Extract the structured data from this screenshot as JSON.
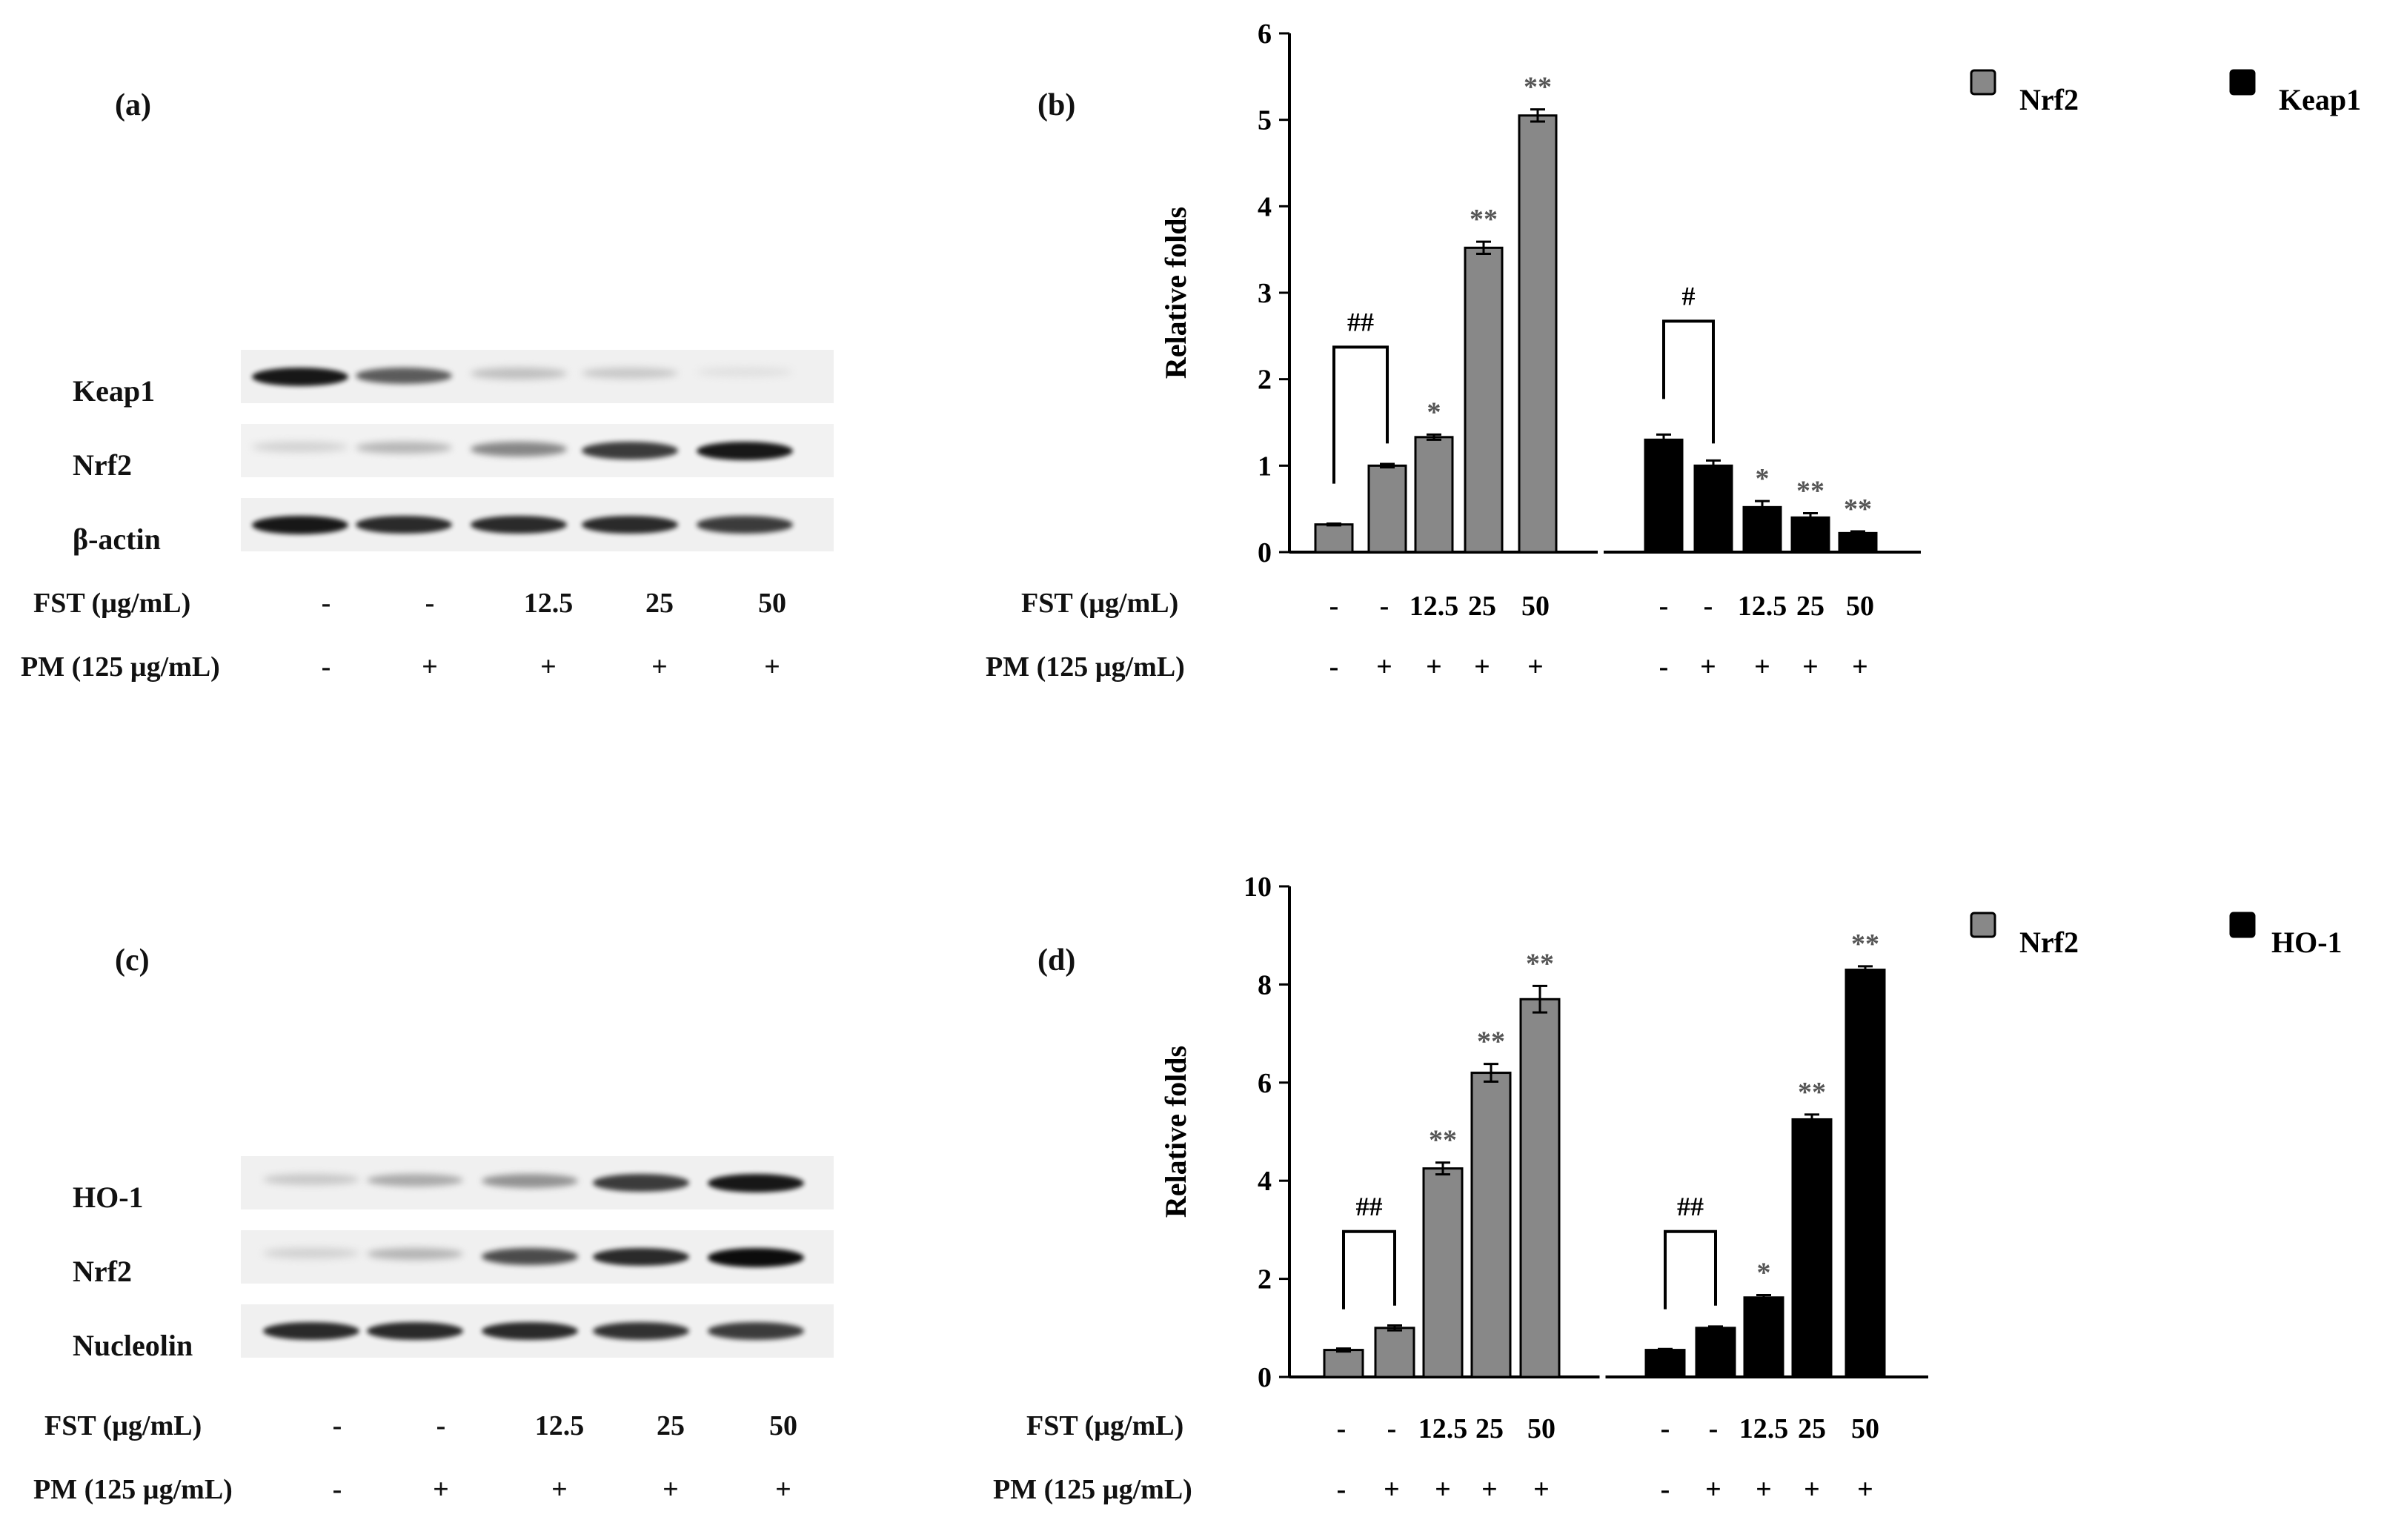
{
  "panels": {
    "a": {
      "label": "(a)",
      "blot_rows": [
        "Keap1",
        "Nrf2",
        "β-actin"
      ],
      "fst_label": "FST (µg/mL)",
      "pm_label": "PM (125 µg/mL)",
      "fst_values": [
        "-",
        "-",
        "12.5",
        "25",
        "50"
      ],
      "pm_values": [
        "-",
        "+",
        "+",
        "+",
        "+"
      ],
      "band_intensity": {
        "Keap1": [
          0.95,
          0.75,
          0.35,
          0.3,
          0.15
        ],
        "Nrf2": [
          0.25,
          0.4,
          0.6,
          0.85,
          0.95
        ],
        "β-actin": [
          0.95,
          0.9,
          0.9,
          0.9,
          0.85
        ]
      }
    },
    "c": {
      "label": "(c)",
      "blot_rows": [
        "HO-1",
        "Nrf2",
        "Nucleolin"
      ],
      "fst_label": "FST (µg/mL)",
      "pm_label": "PM (125 µg/mL)",
      "fst_values": [
        "-",
        "-",
        "12.5",
        "25",
        "50"
      ],
      "pm_values": [
        "-",
        "+",
        "+",
        "+",
        "+"
      ],
      "band_intensity": {
        "HO-1": [
          0.3,
          0.45,
          0.55,
          0.85,
          0.95
        ],
        "Nrf2": [
          0.25,
          0.4,
          0.8,
          0.9,
          0.98
        ],
        "Nucleolin": [
          0.9,
          0.9,
          0.9,
          0.88,
          0.85
        ]
      }
    },
    "b": {
      "label": "(b)",
      "fst_label": "FST (µg/mL)",
      "pm_label": "PM (125 µg/mL)"
    },
    "d": {
      "label": "(d)",
      "fst_label": "FST (µg/mL)",
      "pm_label": "PM (125 µg/mL)"
    }
  },
  "chart_data": [
    {
      "id": "b",
      "type": "bar",
      "ylabel": "Relative folds",
      "ylim": [
        0,
        6
      ],
      "yticks": [
        0,
        1,
        2,
        3,
        4,
        5,
        6
      ],
      "legend": [
        {
          "name": "Nrf2",
          "color": "#888888"
        },
        {
          "name": "Keap1",
          "color": "#000000"
        }
      ],
      "fst_values": [
        "-",
        "-",
        "12.5",
        "25",
        "50"
      ],
      "pm_values": [
        "-",
        "+",
        "+",
        "+",
        "+"
      ],
      "series": [
        {
          "name": "Nrf2",
          "color": "#888888",
          "values": [
            0.32,
            1.0,
            1.33,
            3.52,
            5.05
          ],
          "errors": [
            0.01,
            0.02,
            0.03,
            0.07,
            0.07
          ],
          "sig": [
            "",
            "",
            "*",
            "**",
            "**"
          ],
          "bracket": "##"
        },
        {
          "name": "Keap1",
          "color": "#000000",
          "values": [
            1.3,
            1.0,
            0.52,
            0.4,
            0.22
          ],
          "errors": [
            0.06,
            0.06,
            0.07,
            0.05,
            0.02
          ],
          "sig": [
            "",
            "",
            "*",
            "**",
            "**"
          ],
          "bracket": "#"
        }
      ]
    },
    {
      "id": "d",
      "type": "bar",
      "ylabel": "Relative folds",
      "ylim": [
        0,
        10
      ],
      "yticks": [
        0,
        2,
        4,
        6,
        8,
        10
      ],
      "legend": [
        {
          "name": "Nrf2",
          "color": "#888888"
        },
        {
          "name": "HO-1",
          "color": "#000000"
        }
      ],
      "fst_values": [
        "-",
        "-",
        "12.5",
        "25",
        "50"
      ],
      "pm_values": [
        "-",
        "+",
        "+",
        "+",
        "+"
      ],
      "series": [
        {
          "name": "Nrf2",
          "color": "#888888",
          "values": [
            0.55,
            1.0,
            4.25,
            6.2,
            7.7
          ],
          "errors": [
            0.03,
            0.05,
            0.12,
            0.18,
            0.27
          ],
          "sig": [
            "",
            "",
            "**",
            "**",
            "**"
          ],
          "bracket": "##"
        },
        {
          "name": "HO-1",
          "color": "#000000",
          "values": [
            0.55,
            1.0,
            1.62,
            5.25,
            8.3
          ],
          "errors": [
            0.02,
            0.03,
            0.05,
            0.1,
            0.07
          ],
          "sig": [
            "",
            "",
            "*",
            "**",
            "**"
          ],
          "bracket": "##"
        }
      ]
    }
  ]
}
